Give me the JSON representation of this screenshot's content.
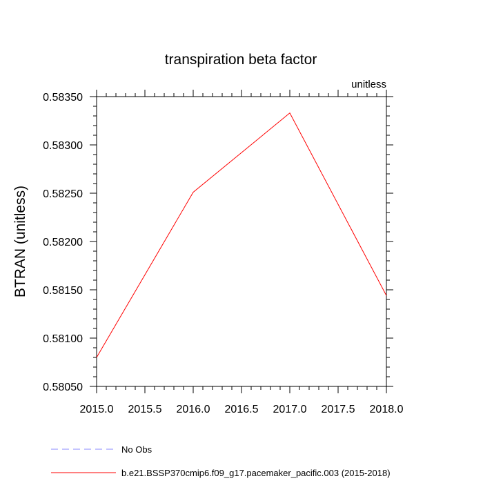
{
  "chart_data": {
    "type": "line",
    "title": "transpiration beta factor",
    "units_label": "unitless",
    "xlabel": "",
    "ylabel": "BTRAN  (unitless)",
    "xlim": [
      2015.0,
      2018.0
    ],
    "ylim": [
      0.5805,
      0.5835
    ],
    "x_ticks": [
      "2015.0",
      "2015.5",
      "2016.0",
      "2016.5",
      "2017.0",
      "2017.5",
      "2018.0"
    ],
    "y_ticks": [
      "0.58050",
      "0.58100",
      "0.58150",
      "0.58200",
      "0.58250",
      "0.58300",
      "0.58350"
    ],
    "x_tick_values": [
      2015.0,
      2015.5,
      2016.0,
      2016.5,
      2017.0,
      2017.5,
      2018.0
    ],
    "y_tick_values": [
      0.5805,
      0.581,
      0.5815,
      0.582,
      0.5825,
      0.583,
      0.5835
    ],
    "grid": false,
    "legend_position": "bottom",
    "series": [
      {
        "name": "b.e21.BSSP370cmip6.f09_g17.pacemaker_pacific.003 (2015-2018)",
        "color": "#ff0000",
        "style": "solid",
        "x": [
          2015,
          2016,
          2017,
          2018
        ],
        "values": [
          0.5808,
          0.58251,
          0.58333,
          0.58144
        ]
      }
    ],
    "legend": [
      {
        "label": "No Obs",
        "color": "#8a8aff",
        "style": "dashed"
      },
      {
        "label": "b.e21.BSSP370cmip6.f09_g17.pacemaker_pacific.003 (2015-2018)",
        "color": "#ff0000",
        "style": "solid"
      }
    ]
  }
}
